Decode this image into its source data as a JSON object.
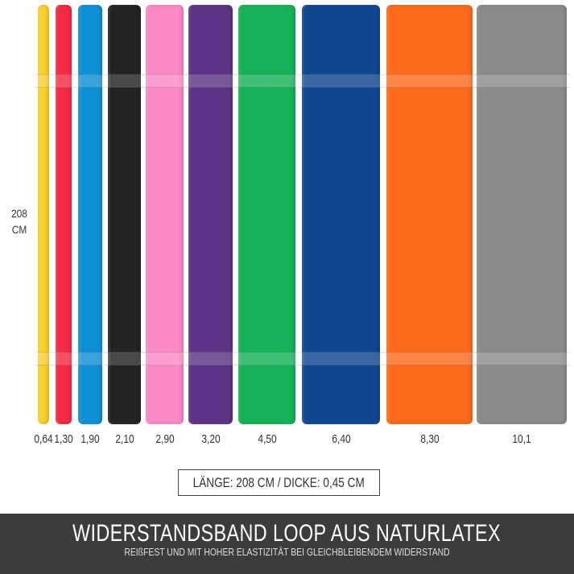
{
  "length_label": {
    "value": "208",
    "unit": "CM"
  },
  "bands": [
    {
      "color": "#f9cf2b",
      "label": "0,64"
    },
    {
      "color": "#f62a44",
      "label": "1,30"
    },
    {
      "color": "#0f8fd6",
      "label": "1,90"
    },
    {
      "color": "#232325",
      "label": "2,10"
    },
    {
      "color": "#f98ac6",
      "label": "2,90"
    },
    {
      "color": "#5c3286",
      "label": "3,20"
    },
    {
      "color": "#16b158",
      "label": "4,50"
    },
    {
      "color": "#0f4791",
      "label": "6,40"
    },
    {
      "color": "#fc6a1c",
      "label": "8,30"
    },
    {
      "color": "#8a8a8c",
      "label": "10,1"
    }
  ],
  "spec": "LÄNGE: 208 CM / DICKE: 0,45 CM",
  "banner": {
    "title": "WIDERSTANDSBAND LOOP AUS NATURLATEX",
    "subtitle": "REIßFEST UND MIT HOHER ELASTIZITÄT BEI GLEICHBLEIBENDEM WIDERSTAND"
  }
}
